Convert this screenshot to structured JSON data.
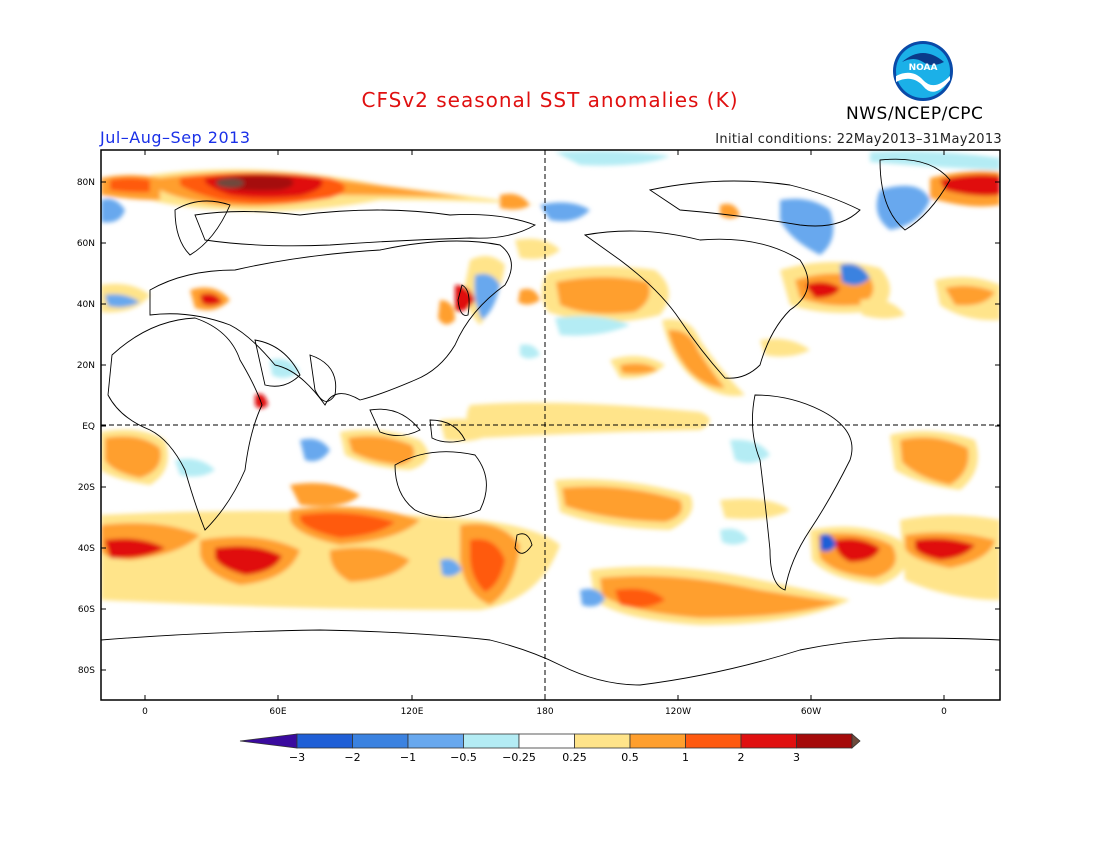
{
  "header": {
    "title": "CFSv2 seasonal SST anomalies (K)",
    "period": "Jul–Aug–Sep 2013",
    "initial_conditions": "Initial conditions: 22May2013–31May2013",
    "org": "NWS/NCEP/CPC",
    "logo_text": "NOAA"
  },
  "map": {
    "lon_ticks": [
      "0",
      "60E",
      "120E",
      "180",
      "120W",
      "60W",
      "0"
    ],
    "lat_ticks": [
      "80N",
      "60N",
      "40N",
      "20N",
      "EQ",
      "20S",
      "40S",
      "60S",
      "80S"
    ]
  },
  "colorbar": {
    "labels": [
      "−3",
      "−2",
      "−1",
      "−0.5",
      "−0.25",
      "0.25",
      "0.5",
      "1",
      "2",
      "3"
    ],
    "colors": [
      "#3a0a9e",
      "#1f5fd6",
      "#3b82e0",
      "#68a8ee",
      "#b4ecf4",
      "#ffffff",
      "#ffe48a",
      "#ff9f2e",
      "#ff5a10",
      "#e01010",
      "#a50a0a",
      "#6e4a3c"
    ]
  }
}
